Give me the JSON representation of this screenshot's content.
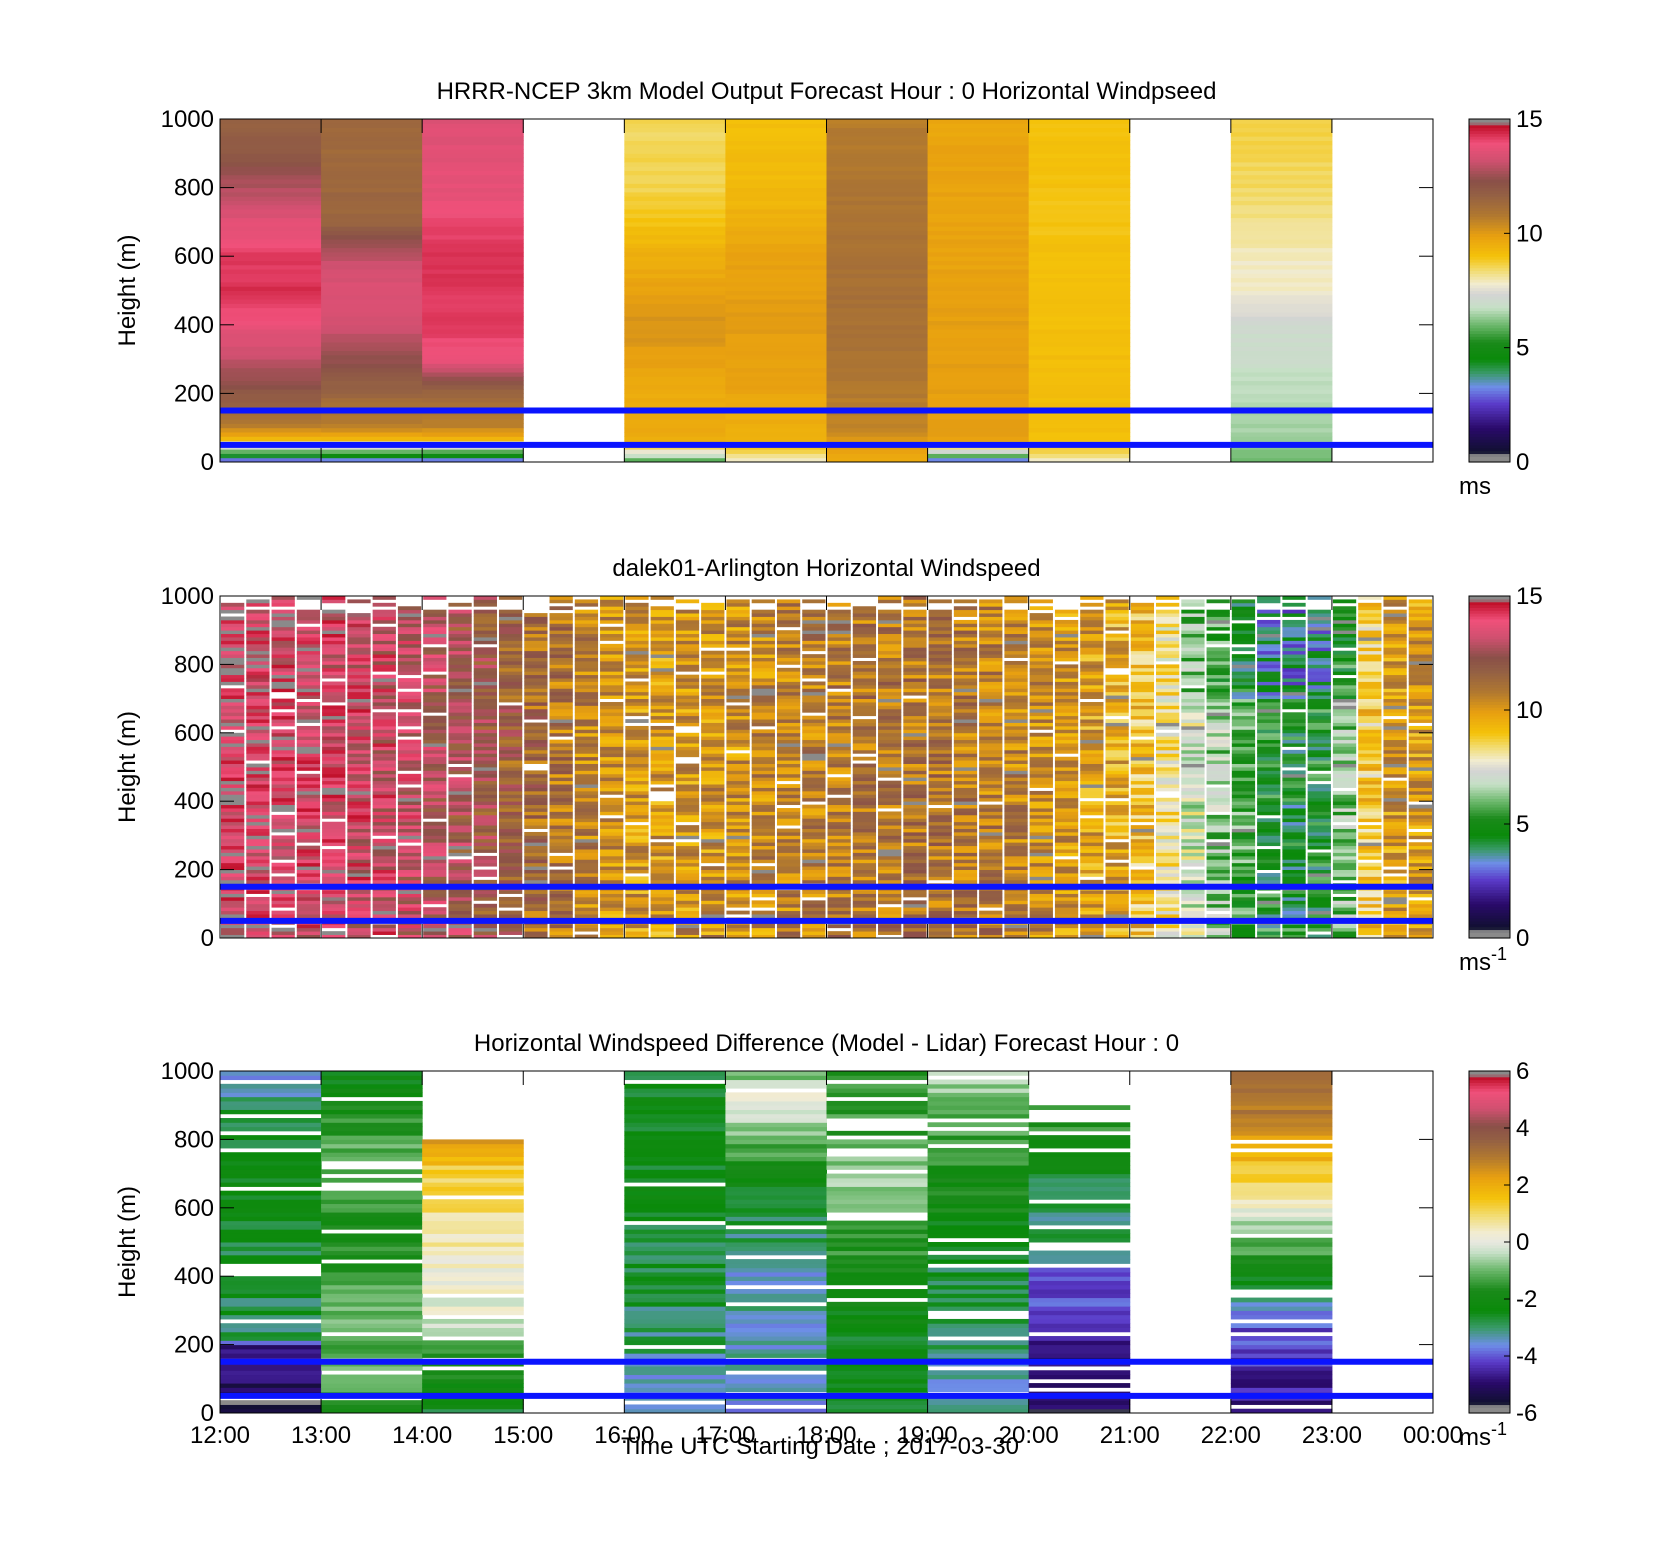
{
  "figure": {
    "xlabel": "Time UTC  Starting Date ; 2017-03-30"
  },
  "chart_data": [
    {
      "type": "heatmap",
      "title": "HRRR-NCEP 3km Model Output   Forecast Hour : 0 Horizontal Windpseed",
      "ylabel": "Height (m)",
      "xlabel": "",
      "xlim": [
        "12:00",
        "00:00"
      ],
      "ylim": [
        0,
        1000
      ],
      "yticks": [
        0,
        200,
        400,
        600,
        800,
        1000
      ],
      "xticks": [
        "12:00",
        "13:00",
        "14:00",
        "15:00",
        "16:00",
        "17:00",
        "18:00",
        "19:00",
        "20:00",
        "21:00",
        "22:00",
        "23:00",
        "00:00"
      ],
      "show_xtick_labels": false,
      "colorbar": {
        "min": 0,
        "max": 15,
        "ticks": [
          0,
          5,
          10,
          15
        ],
        "unit": "ms",
        "superscript": ""
      },
      "reference_lines": [
        {
          "height_m": 150,
          "color": "#0a14ff"
        },
        {
          "height_m": 50,
          "color": "#0a14ff"
        }
      ],
      "column_hours": [
        0,
        1,
        2,
        4,
        5,
        6,
        7,
        8,
        10
      ],
      "column_profiles_ms": [
        [
          [
            0,
            2.5
          ],
          [
            20,
            4.5
          ],
          [
            40,
            7
          ],
          [
            70,
            9.5
          ],
          [
            100,
            10.5
          ],
          [
            180,
            11.8
          ],
          [
            280,
            12.8
          ],
          [
            330,
            13.3
          ],
          [
            400,
            13.8
          ],
          [
            500,
            14.3
          ],
          [
            600,
            14.2
          ],
          [
            700,
            13.6
          ],
          [
            800,
            12.8
          ],
          [
            900,
            12
          ],
          [
            1000,
            11.6
          ]
        ],
        [
          [
            0,
            2.5
          ],
          [
            20,
            4.5
          ],
          [
            40,
            7
          ],
          [
            70,
            9.5
          ],
          [
            100,
            10.5
          ],
          [
            200,
            11.5
          ],
          [
            400,
            13.3
          ],
          [
            500,
            13.5
          ],
          [
            600,
            13
          ],
          [
            700,
            11.5
          ],
          [
            1000,
            11.3
          ]
        ],
        [
          [
            0,
            2.5
          ],
          [
            20,
            4.5
          ],
          [
            40,
            7
          ],
          [
            70,
            9.5
          ],
          [
            100,
            10.5
          ],
          [
            200,
            11.5
          ],
          [
            300,
            13.8
          ],
          [
            400,
            14.2
          ],
          [
            600,
            14.3
          ],
          [
            800,
            13.7
          ],
          [
            1000,
            13.5
          ]
        ],
        [
          [
            0,
            5.5
          ],
          [
            30,
            7.5
          ],
          [
            60,
            9.6
          ],
          [
            200,
            9.6
          ],
          [
            400,
            10.2
          ],
          [
            600,
            9.5
          ],
          [
            700,
            9
          ],
          [
            800,
            8.6
          ],
          [
            1000,
            8.5
          ]
        ],
        [
          [
            0,
            7.8
          ],
          [
            30,
            8.5
          ],
          [
            60,
            9.3
          ],
          [
            200,
            9.8
          ],
          [
            400,
            10
          ],
          [
            600,
            9.8
          ],
          [
            800,
            9.2
          ],
          [
            1000,
            9.1
          ]
        ],
        [
          [
            0,
            9.5
          ],
          [
            100,
            10.5
          ],
          [
            300,
            11
          ],
          [
            500,
            11.1
          ],
          [
            700,
            11
          ],
          [
            900,
            10.8
          ],
          [
            1000,
            10.7
          ]
        ],
        [
          [
            0,
            2
          ],
          [
            20,
            6
          ],
          [
            60,
            9.9
          ],
          [
            400,
            9.9
          ],
          [
            700,
            9.8
          ],
          [
            900,
            9.8
          ],
          [
            1000,
            9.7
          ]
        ],
        [
          [
            0,
            7.8
          ],
          [
            40,
            8.8
          ],
          [
            100,
            9.1
          ],
          [
            400,
            9.1
          ],
          [
            700,
            9
          ],
          [
            1000,
            9
          ]
        ],
        [
          [
            0,
            6
          ],
          [
            60,
            6.4
          ],
          [
            200,
            6.6
          ],
          [
            300,
            6.9
          ],
          [
            400,
            7.1
          ],
          [
            450,
            7.6
          ],
          [
            500,
            7.8
          ],
          [
            600,
            7.9
          ],
          [
            700,
            8.2
          ],
          [
            800,
            8.5
          ],
          [
            900,
            8.6
          ],
          [
            1000,
            8.7
          ]
        ]
      ]
    },
    {
      "type": "heatmap",
      "title": "dalek01-Arlington  Horizontal Windspeed",
      "ylabel": "Height (m)",
      "xlabel": "",
      "xlim": [
        "12:00",
        "00:00"
      ],
      "ylim": [
        0,
        1000
      ],
      "yticks": [
        0,
        200,
        400,
        600,
        800,
        1000
      ],
      "show_xtick_labels": false,
      "colorbar": {
        "min": 0,
        "max": 15,
        "ticks": [
          0,
          5,
          10,
          15
        ],
        "unit": "ms",
        "superscript": "-1"
      },
      "reference_lines": [
        {
          "height_m": 150,
          "color": "#0a14ff"
        },
        {
          "height_m": 50,
          "color": "#0a14ff"
        }
      ],
      "time_step_hours": 0.25,
      "column_start_hour": 0,
      "column_count": 48,
      "typical_speed_by_hour_ms": [
        [
          0,
          14
        ],
        [
          1,
          13.8
        ],
        [
          2,
          13
        ],
        [
          3,
          11.5
        ],
        [
          4,
          10
        ],
        [
          5,
          10.2
        ],
        [
          6,
          10.8
        ],
        [
          7,
          11
        ],
        [
          8,
          10.5
        ],
        [
          9,
          9.5
        ],
        [
          9.5,
          7.5
        ],
        [
          10,
          6
        ],
        [
          10.5,
          4.5
        ],
        [
          11,
          5
        ],
        [
          11.5,
          10
        ]
      ],
      "dominant_range_by_hour_ms": [
        [
          0,
          "13-14.5"
        ],
        [
          2,
          "11-14"
        ],
        [
          4,
          "9-11"
        ],
        [
          7,
          "9-12"
        ],
        [
          9,
          "7-11"
        ],
        [
          10,
          "3-8"
        ],
        [
          11.5,
          "9-12"
        ]
      ]
    },
    {
      "type": "heatmap",
      "title": "Horizontal Windspeed Difference (Model - Lidar) Forecast Hour : 0",
      "ylabel": "Height (m)",
      "xlabel": "Time UTC  Starting Date ; 2017-03-30",
      "xlim": [
        "12:00",
        "00:00"
      ],
      "ylim": [
        0,
        1000
      ],
      "yticks": [
        0,
        200,
        400,
        600,
        800,
        1000
      ],
      "xticks": [
        "12:00",
        "13:00",
        "14:00",
        "15:00",
        "16:00",
        "17:00",
        "18:00",
        "19:00",
        "20:00",
        "21:00",
        "22:00",
        "23:00",
        "00:00"
      ],
      "show_xtick_labels": true,
      "colorbar": {
        "min": -6,
        "max": 6,
        "ticks": [
          -6,
          -4,
          -2,
          0,
          2,
          4,
          6
        ],
        "unit": "ms",
        "superscript": "-1"
      },
      "reference_lines": [
        {
          "height_m": 150,
          "color": "#0a14ff"
        },
        {
          "height_m": 50,
          "color": "#0a14ff"
        }
      ],
      "column_hours": [
        0,
        1,
        2,
        4,
        5,
        6,
        7,
        8,
        10
      ],
      "column_profiles_ms": [
        [
          [
            0,
            -5.6
          ],
          [
            100,
            -5
          ],
          [
            200,
            -4.6
          ],
          [
            220,
            -2.8
          ],
          [
            400,
            -2.8
          ],
          [
            600,
            -2.3
          ],
          [
            800,
            -2.5
          ],
          [
            950,
            -3.2
          ],
          [
            1000,
            -3.8
          ]
        ],
        [
          [
            0,
            -1.5
          ],
          [
            100,
            -1.2
          ],
          [
            300,
            -1
          ],
          [
            400,
            -1.5
          ],
          [
            500,
            -1.8
          ],
          [
            600,
            -1.5
          ],
          [
            800,
            -1.2
          ],
          [
            1000,
            -2.5
          ]
        ],
        [
          [
            0,
            -2.5
          ],
          [
            100,
            -2
          ],
          [
            300,
            0
          ],
          [
            400,
            0.3
          ],
          [
            500,
            0.5
          ],
          [
            600,
            1
          ],
          [
            700,
            1.2
          ],
          [
            800,
            2.5
          ]
        ],
        [
          [
            0,
            -3.8
          ],
          [
            100,
            -3.5
          ],
          [
            200,
            -3
          ],
          [
            400,
            -2.8
          ],
          [
            600,
            -2.5
          ],
          [
            800,
            -2.3
          ],
          [
            1000,
            -2.6
          ]
        ],
        [
          [
            0,
            -3.5
          ],
          [
            100,
            -3.3
          ],
          [
            200,
            -3.3
          ],
          [
            400,
            -3.3
          ],
          [
            600,
            -2.8
          ],
          [
            800,
            -1
          ],
          [
            900,
            0.3
          ],
          [
            1000,
            -1
          ]
        ],
        [
          [
            0,
            -2.5
          ],
          [
            200,
            -2.5
          ],
          [
            400,
            -1.8
          ],
          [
            600,
            -1.2
          ],
          [
            700,
            -0.6
          ],
          [
            800,
            -1.2
          ],
          [
            1000,
            -1.5
          ]
        ],
        [
          [
            0,
            -3.5
          ],
          [
            100,
            -3.2
          ],
          [
            200,
            -2.9
          ],
          [
            400,
            -2.8
          ],
          [
            600,
            -2
          ],
          [
            700,
            -1.8
          ],
          [
            1000,
            -0.5
          ]
        ],
        [
          [
            0,
            -5.3
          ],
          [
            100,
            -5
          ],
          [
            200,
            -4.8
          ],
          [
            300,
            -4.2
          ],
          [
            400,
            -4
          ],
          [
            450,
            -3.5
          ],
          [
            500,
            -3
          ],
          [
            600,
            -3
          ],
          [
            700,
            -2.5
          ],
          [
            900,
            -1
          ]
        ],
        [
          [
            0,
            -4.8
          ],
          [
            100,
            -4.5
          ],
          [
            200,
            -4.2
          ],
          [
            300,
            -3.8
          ],
          [
            350,
            -2.8
          ],
          [
            800,
            2.5
          ],
          [
            1000,
            3.5
          ]
        ]
      ]
    }
  ]
}
